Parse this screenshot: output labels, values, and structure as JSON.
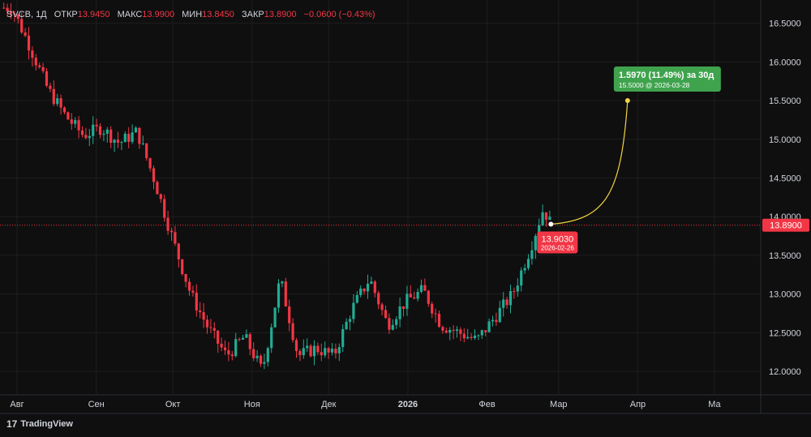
{
  "legend": {
    "symbol": "SVCB, 1Д",
    "open_label": "ОТКР",
    "open_value": "13.9450",
    "high_label": "МАКС",
    "high_value": "13.9900",
    "low_label": "МИН",
    "low_value": "13.8450",
    "close_label": "ЗАКР",
    "close_value": "13.8900",
    "change": "−0.0600 (−0.43%)"
  },
  "branding": {
    "logo_glyph": "17",
    "name": "TradingView"
  },
  "colors": {
    "background": "#0f0f0f",
    "up": "#22ab94",
    "down": "#f23645",
    "grid": "#1e1e1e",
    "forecast_line": "#f5d442",
    "forecast_badge": "#3fa34d",
    "price_badge": "#f23645",
    "text": "#d1d4dc"
  },
  "chart_data": {
    "type": "candlestick",
    "interval": "1Д",
    "x_tick_labels": [
      "Авг",
      "Сен",
      "Окт",
      "Ноя",
      "Дек",
      "2026",
      "Фев",
      "Мар",
      "Апр",
      "Ма"
    ],
    "y_tick_labels": [
      "12.0000",
      "12.5000",
      "13.0000",
      "13.5000",
      "14.0000",
      "14.5000",
      "15.0000",
      "15.5000",
      "16.0000",
      "16.5000"
    ],
    "ylim": [
      11.7,
      16.8
    ],
    "close_path": [
      {
        "date": "2025-07-30",
        "close": 16.7
      },
      {
        "date": "2025-08-06",
        "close": 16.2
      },
      {
        "date": "2025-08-13",
        "close": 15.65
      },
      {
        "date": "2025-08-20",
        "close": 15.3
      },
      {
        "date": "2025-08-27",
        "close": 15.05
      },
      {
        "date": "2025-09-03",
        "close": 15.15
      },
      {
        "date": "2025-09-10",
        "close": 14.95
      },
      {
        "date": "2025-09-17",
        "close": 15.1
      },
      {
        "date": "2025-09-24",
        "close": 14.45
      },
      {
        "date": "2025-10-01",
        "close": 13.7
      },
      {
        "date": "2025-10-08",
        "close": 13.0
      },
      {
        "date": "2025-10-15",
        "close": 12.55
      },
      {
        "date": "2025-10-22",
        "close": 12.2
      },
      {
        "date": "2025-10-29",
        "close": 12.45
      },
      {
        "date": "2025-11-05",
        "close": 12.0
      },
      {
        "date": "2025-11-12",
        "close": 13.2
      },
      {
        "date": "2025-11-19",
        "close": 12.2
      },
      {
        "date": "2025-11-26",
        "close": 12.3
      },
      {
        "date": "2025-12-03",
        "close": 12.2
      },
      {
        "date": "2025-12-10",
        "close": 12.8
      },
      {
        "date": "2025-12-17",
        "close": 13.2
      },
      {
        "date": "2025-12-24",
        "close": 12.6
      },
      {
        "date": "2025-12-31",
        "close": 12.9
      },
      {
        "date": "2026-01-07",
        "close": 13.05
      },
      {
        "date": "2026-01-14",
        "close": 12.6
      },
      {
        "date": "2026-01-21",
        "close": 12.5
      },
      {
        "date": "2026-01-28",
        "close": 12.4
      },
      {
        "date": "2026-02-04",
        "close": 12.7
      },
      {
        "date": "2026-02-11",
        "close": 13.0
      },
      {
        "date": "2026-02-18",
        "close": 13.6
      },
      {
        "date": "2026-02-23",
        "close": 14.1
      },
      {
        "date": "2026-02-26",
        "close": 13.903
      }
    ],
    "last_price": 13.89,
    "last_price_label": "13.8900",
    "current_point": {
      "value_label": "13.9030",
      "date": "2026-02-26"
    },
    "forecast": {
      "change_label": "1.5970 (11.49%) за 30д",
      "target_label": "15.5000 @ 2026-03-28",
      "target_date": "2026-03-28",
      "target_value": 15.5
    }
  }
}
